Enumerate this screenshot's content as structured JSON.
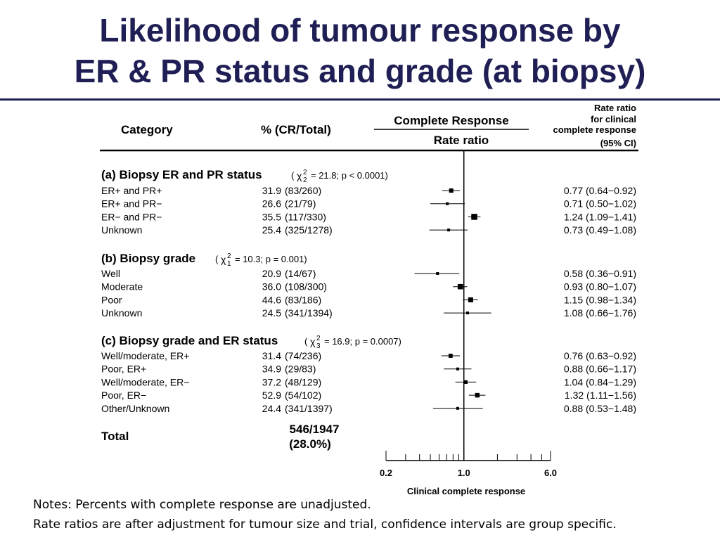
{
  "title": {
    "line1": "Likelihood of tumour response by",
    "line2": "ER & PR status and grade (at biopsy)"
  },
  "notes": {
    "line1": "Notes: Percents with complete response are unadjusted.",
    "line2": "Rate ratios are after adjustment for tumour size and trial, confidence intervals are group specific."
  },
  "colors": {
    "title": "#1f1f55",
    "ink": "#000000"
  },
  "chart_data": {
    "type": "forest",
    "headers": {
      "category": "Category",
      "percent": "% (CR/Total)",
      "plot_top": "Complete Response",
      "plot_bottom": "Rate ratio",
      "ci_line1": "Rate ratio",
      "ci_line2": "for clinical",
      "ci_line3": "complete response",
      "ci_line4": "(95% CI)"
    },
    "xaxis": {
      "scale": "log",
      "range": [
        0.2,
        6.0
      ],
      "ticks": [
        0.2,
        0.3,
        0.4,
        0.5,
        0.6,
        0.7,
        0.8,
        0.9,
        1.0,
        2.0,
        3.0,
        4.0,
        5.0,
        6.0
      ],
      "tick_labels": [
        {
          "value": 0.2,
          "label": "0.2"
        },
        {
          "value": 1.0,
          "label": "1.0"
        },
        {
          "value": 6.0,
          "label": "6.0"
        }
      ],
      "label": "Clinical complete response",
      "reference": 1.0
    },
    "groups": [
      {
        "title": "(a) Biopsy ER and PR status",
        "stat_open": "(",
        "chi_symbol": "χ",
        "chi_sup": "2",
        "chi_sub": "2",
        "stat_value": "= 21.8;  p < 0.0001)",
        "rows": [
          {
            "label": "ER+ and PR+",
            "pct": "31.9",
            "counts": "(83/260)",
            "rr": 0.77,
            "lo": 0.64,
            "hi": 0.92,
            "ci_text": "0.77 (0.64−0.92)",
            "n": 260
          },
          {
            "label": "ER+ and PR−",
            "pct": "26.6",
            "counts": "(21/79)",
            "rr": 0.71,
            "lo": 0.5,
            "hi": 1.02,
            "ci_text": "0.71 (0.50−1.02)",
            "n": 79
          },
          {
            "label": "ER− and PR−",
            "pct": "35.5",
            "counts": "(117/330)",
            "rr": 1.24,
            "lo": 1.09,
            "hi": 1.41,
            "ci_text": "1.24 (1.09−1.41)",
            "n": 330
          },
          {
            "label": "Unknown",
            "pct": "25.4",
            "counts": "(325/1278)",
            "rr": 0.73,
            "lo": 0.49,
            "hi": 1.08,
            "ci_text": "0.73 (0.49−1.08)",
            "n": 1278
          }
        ]
      },
      {
        "title": "(b) Biopsy grade",
        "stat_open": "(",
        "chi_symbol": "χ",
        "chi_sup": "2",
        "chi_sub": "1",
        "stat_value": "= 10.3;  p = 0.001)",
        "rows": [
          {
            "label": "Well",
            "pct": "20.9",
            "counts": "(14/67)",
            "rr": 0.58,
            "lo": 0.36,
            "hi": 0.91,
            "ci_text": "0.58 (0.36−0.91)",
            "n": 67
          },
          {
            "label": "Moderate",
            "pct": "36.0",
            "counts": "(108/300)",
            "rr": 0.93,
            "lo": 0.8,
            "hi": 1.07,
            "ci_text": "0.93 (0.80−1.07)",
            "n": 300
          },
          {
            "label": "Poor",
            "pct": "44.6",
            "counts": "(83/186)",
            "rr": 1.15,
            "lo": 0.98,
            "hi": 1.34,
            "ci_text": "1.15 (0.98−1.34)",
            "n": 186
          },
          {
            "label": "Unknown",
            "pct": "24.5",
            "counts": "(341/1394)",
            "rr": 1.08,
            "lo": 0.66,
            "hi": 1.76,
            "ci_text": "1.08 (0.66−1.76)",
            "n": 1394
          }
        ]
      },
      {
        "title": "(c) Biopsy grade and ER status",
        "stat_open": "(",
        "chi_symbol": "χ",
        "chi_sup": "2",
        "chi_sub": "3",
        "stat_value": "= 16.9;  p = 0.0007)",
        "rows": [
          {
            "label": "Well/moderate, ER+",
            "pct": "31.4",
            "counts": "(74/236)",
            "rr": 0.76,
            "lo": 0.63,
            "hi": 0.92,
            "ci_text": "0.76 (0.63−0.92)",
            "n": 236
          },
          {
            "label": "Poor, ER+",
            "pct": "34.9",
            "counts": "(29/83)",
            "rr": 0.88,
            "lo": 0.66,
            "hi": 1.17,
            "ci_text": "0.88 (0.66−1.17)",
            "n": 83
          },
          {
            "label": "Well/moderate, ER−",
            "pct": "37.2",
            "counts": "(48/129)",
            "rr": 1.04,
            "lo": 0.84,
            "hi": 1.29,
            "ci_text": "1.04 (0.84−1.29)",
            "n": 129
          },
          {
            "label": "Poor, ER−",
            "pct": "52.9",
            "counts": "(54/102)",
            "rr": 1.32,
            "lo": 1.11,
            "hi": 1.56,
            "ci_text": "1.32 (1.11−1.56)",
            "n": 102
          },
          {
            "label": "Other/Unknown",
            "pct": "24.4",
            "counts": "(341/1397)",
            "rr": 0.88,
            "lo": 0.53,
            "hi": 1.48,
            "ci_text": "0.88 (0.53−1.48)",
            "n": 1397
          }
        ]
      }
    ],
    "total": {
      "label": "Total",
      "counts": "546/1947",
      "pct": "(28.0%)"
    }
  }
}
